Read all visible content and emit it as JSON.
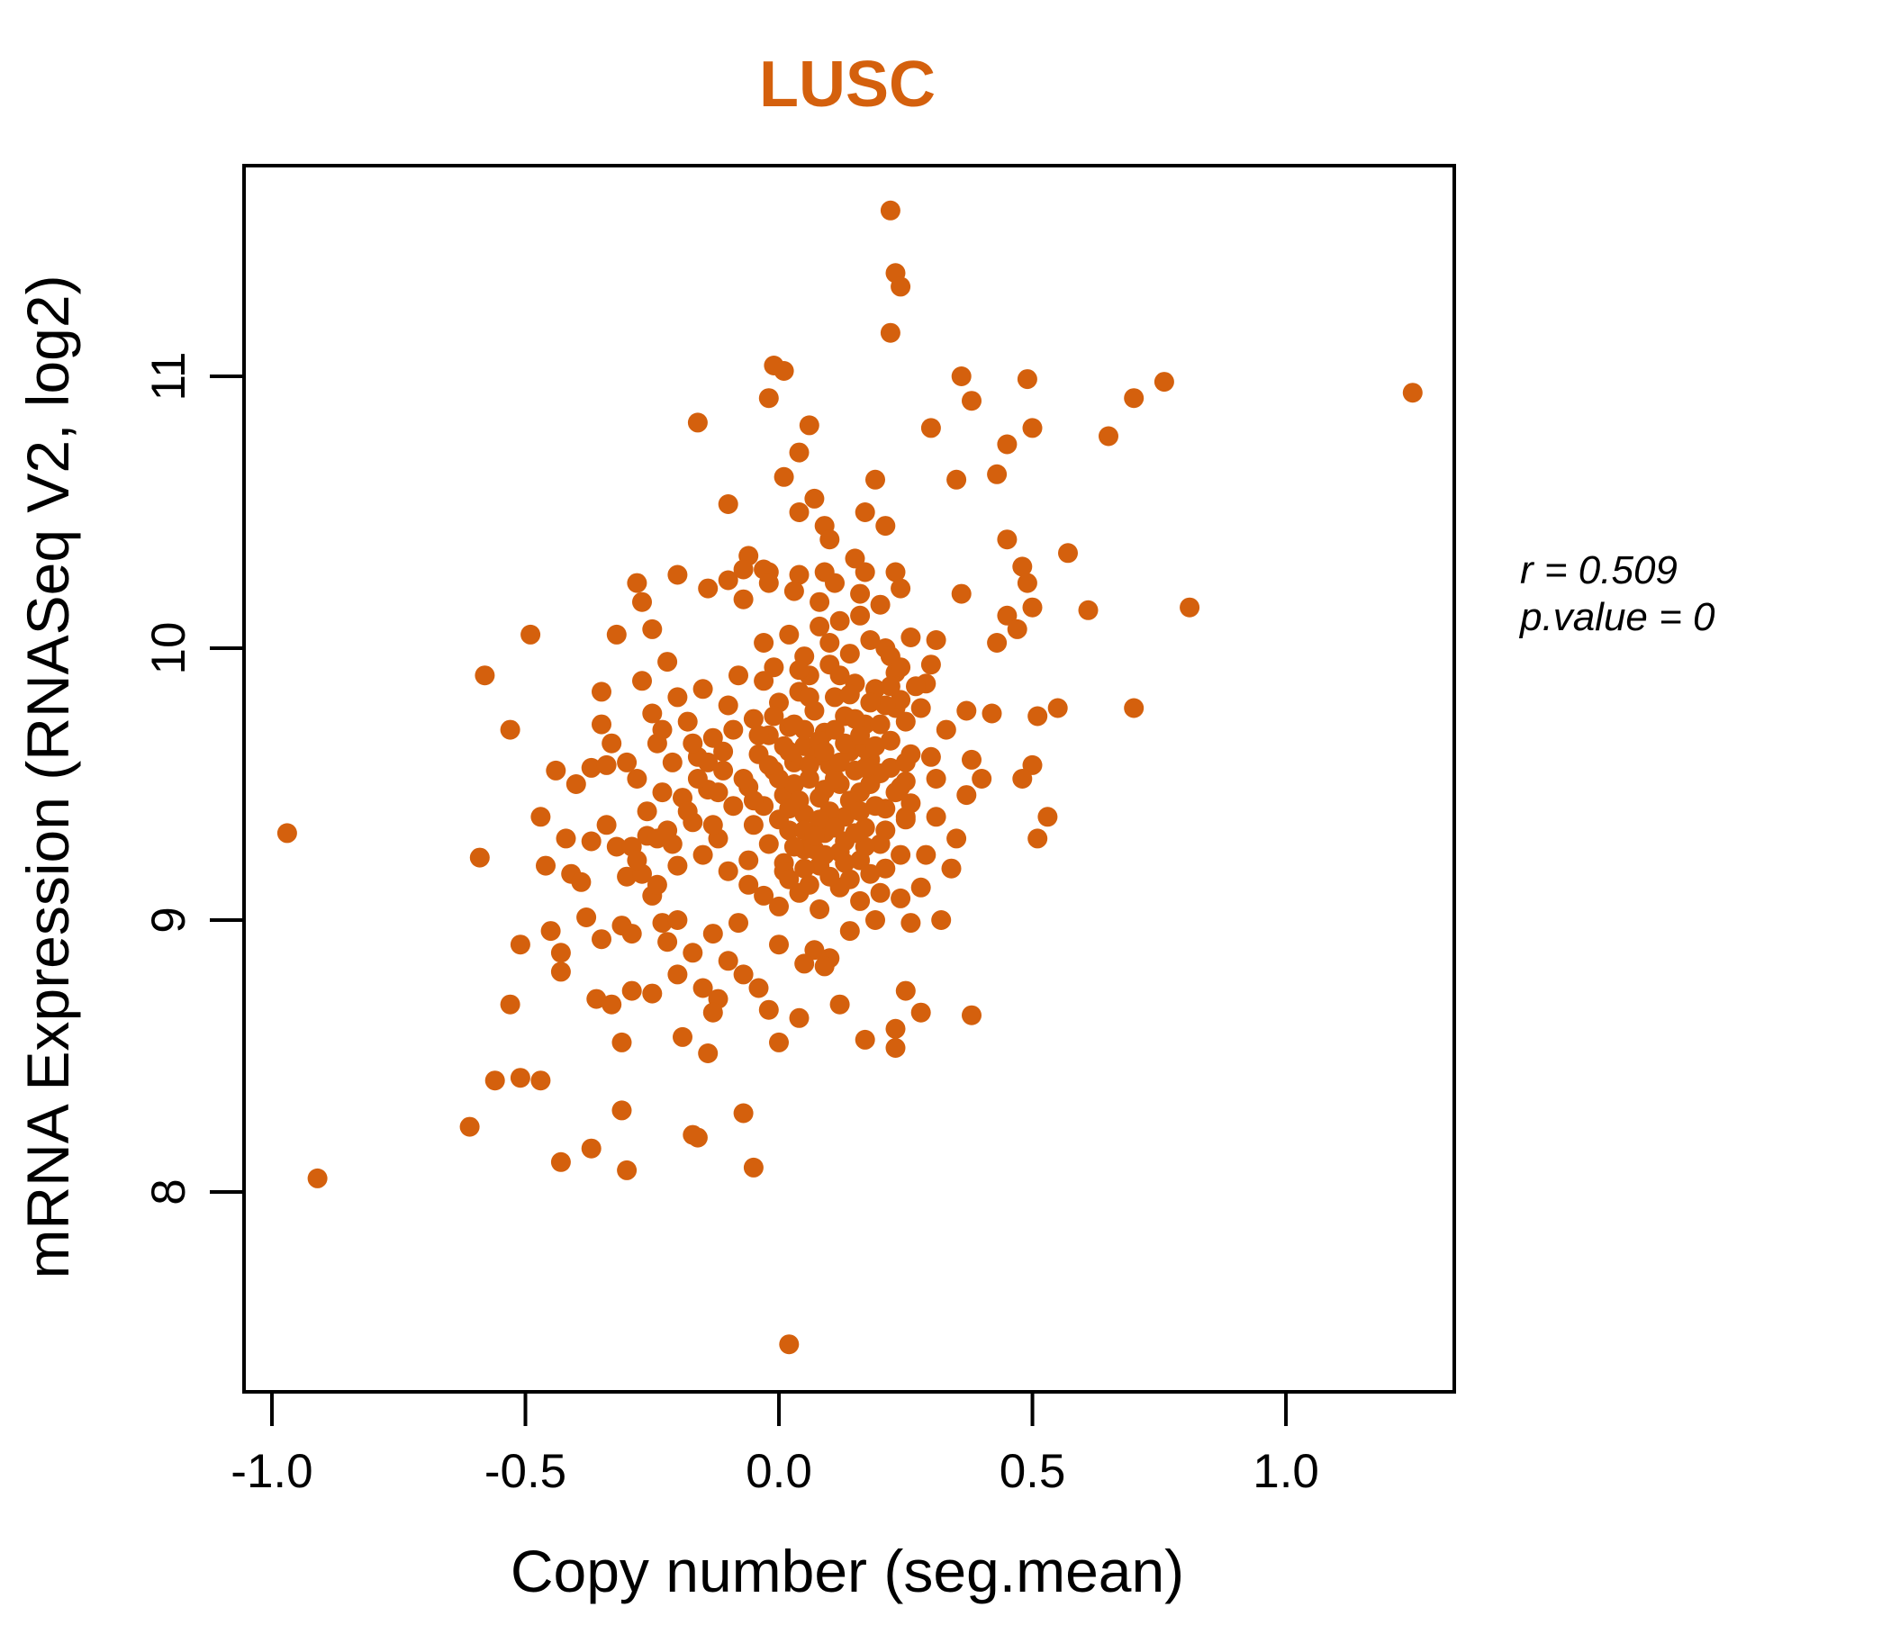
{
  "title": "LUSC",
  "colors": {
    "accent": "#D4600D",
    "axis": "#000000",
    "background": "#FFFFFF"
  },
  "annotation": {
    "r_line": "r = 0.509",
    "p_line": "p.value = 0"
  },
  "chart_data": {
    "type": "scatter",
    "title": "LUSC",
    "xlabel": "Copy number (seg.mean)",
    "ylabel": "mRNA Expression (RNASeq V2, log2)",
    "xlim": [
      -1.055,
      1.332
    ],
    "ylim": [
      7.265,
      11.775
    ],
    "x_ticks": [
      -1.0,
      -0.5,
      0.0,
      0.5,
      1.0
    ],
    "x_tick_labels": [
      "-1.0",
      "-0.5",
      "0.0",
      "0.5",
      "1.0"
    ],
    "y_ticks": [
      8,
      9,
      10,
      11
    ],
    "y_tick_labels": [
      "8",
      "9",
      "10",
      "11"
    ],
    "grid": false,
    "legend": null,
    "annotations": [
      "r = 0.509",
      "p.value = 0"
    ],
    "point_color": "#D4600D",
    "point_radius": 11,
    "points": [
      [
        0.22,
        11.61
      ],
      [
        0.23,
        11.38
      ],
      [
        0.24,
        11.33
      ],
      [
        0.22,
        11.16
      ],
      [
        -0.01,
        11.04
      ],
      [
        0.01,
        11.02
      ],
      [
        -0.02,
        10.92
      ],
      [
        0.36,
        11.0
      ],
      [
        0.49,
        10.99
      ],
      [
        0.38,
        10.91
      ],
      [
        0.7,
        10.92
      ],
      [
        0.76,
        10.98
      ],
      [
        1.25,
        10.94
      ],
      [
        -0.16,
        10.83
      ],
      [
        0.06,
        10.82
      ],
      [
        0.3,
        10.81
      ],
      [
        0.5,
        10.81
      ],
      [
        0.45,
        10.75
      ],
      [
        0.65,
        10.78
      ],
      [
        0.04,
        10.72
      ],
      [
        0.01,
        10.63
      ],
      [
        0.19,
        10.62
      ],
      [
        0.35,
        10.62
      ],
      [
        0.43,
        10.64
      ],
      [
        -0.1,
        10.53
      ],
      [
        0.07,
        10.55
      ],
      [
        0.04,
        10.5
      ],
      [
        0.09,
        10.45
      ],
      [
        0.17,
        10.5
      ],
      [
        0.21,
        10.45
      ],
      [
        0.1,
        10.4
      ],
      [
        0.15,
        10.33
      ],
      [
        -0.06,
        10.34
      ],
      [
        -0.03,
        10.29
      ],
      [
        0.45,
        10.4
      ],
      [
        0.57,
        10.35
      ],
      [
        0.48,
        10.3
      ],
      [
        -0.07,
        10.29
      ],
      [
        -0.02,
        10.28
      ],
      [
        0.04,
        10.27
      ],
      [
        0.09,
        10.28
      ],
      [
        0.17,
        10.28
      ],
      [
        0.23,
        10.28
      ],
      [
        0.81,
        10.15
      ],
      [
        0.61,
        10.14
      ],
      [
        0.36,
        10.2
      ],
      [
        0.49,
        10.24
      ],
      [
        0.45,
        10.12
      ],
      [
        0.47,
        10.07
      ],
      [
        0.5,
        10.15
      ],
      [
        0.43,
        10.02
      ],
      [
        -0.14,
        10.22
      ],
      [
        -0.1,
        10.25
      ],
      [
        -0.07,
        10.18
      ],
      [
        -0.02,
        10.24
      ],
      [
        0.03,
        10.21
      ],
      [
        0.08,
        10.17
      ],
      [
        0.11,
        10.24
      ],
      [
        0.16,
        10.2
      ],
      [
        0.2,
        10.16
      ],
      [
        0.24,
        10.22
      ],
      [
        0.26,
        10.04
      ],
      [
        0.31,
        10.03
      ],
      [
        0.21,
        10.0
      ],
      [
        0.3,
        9.94
      ],
      [
        -0.28,
        10.24
      ],
      [
        -0.2,
        10.27
      ],
      [
        -0.27,
        10.17
      ],
      [
        -0.32,
        10.05
      ],
      [
        -0.49,
        10.05
      ],
      [
        -0.25,
        10.07
      ],
      [
        -0.22,
        9.95
      ],
      [
        -0.58,
        9.9
      ],
      [
        -0.35,
        9.84
      ],
      [
        -0.53,
        9.7
      ],
      [
        -0.35,
        9.72
      ],
      [
        -0.33,
        9.65
      ],
      [
        -0.24,
        9.65
      ],
      [
        -0.37,
        9.56
      ],
      [
        -0.34,
        9.57
      ],
      [
        -0.3,
        9.58
      ],
      [
        -0.4,
        9.5
      ],
      [
        -0.23,
        9.47
      ],
      [
        -0.34,
        9.35
      ],
      [
        -0.37,
        9.29
      ],
      [
        -0.97,
        9.32
      ],
      [
        -0.59,
        9.23
      ],
      [
        -0.32,
        9.27
      ],
      [
        -0.29,
        9.27
      ],
      [
        -0.26,
        9.31
      ],
      [
        -0.24,
        9.3
      ],
      [
        -0.21,
        9.28
      ],
      [
        -0.41,
        9.17
      ],
      [
        -0.39,
        9.14
      ],
      [
        -0.3,
        9.16
      ],
      [
        -0.27,
        9.17
      ],
      [
        -0.25,
        9.09
      ],
      [
        -0.38,
        9.01
      ],
      [
        -0.45,
        8.96
      ],
      [
        -0.51,
        8.91
      ],
      [
        -0.43,
        8.88
      ],
      [
        -0.43,
        8.81
      ],
      [
        -0.35,
        8.93
      ],
      [
        -0.31,
        8.98
      ],
      [
        -0.29,
        8.95
      ],
      [
        -0.23,
        8.99
      ],
      [
        -0.2,
        9.0
      ],
      [
        -0.44,
        9.55
      ],
      [
        -0.47,
        9.38
      ],
      [
        -0.42,
        9.3
      ],
      [
        -0.46,
        9.2
      ],
      [
        -0.53,
        8.69
      ],
      [
        -0.36,
        8.71
      ],
      [
        -0.33,
        8.69
      ],
      [
        -0.29,
        8.74
      ],
      [
        -0.25,
        8.73
      ],
      [
        -0.91,
        8.05
      ],
      [
        -0.61,
        8.24
      ],
      [
        -0.56,
        8.41
      ],
      [
        -0.51,
        8.42
      ],
      [
        -0.47,
        8.41
      ],
      [
        -0.31,
        8.55
      ],
      [
        -0.31,
        8.3
      ],
      [
        -0.43,
        8.11
      ],
      [
        -0.37,
        8.16
      ],
      [
        -0.3,
        8.08
      ],
      [
        -0.19,
        8.57
      ],
      [
        -0.17,
        8.21
      ],
      [
        -0.17,
        8.88
      ],
      [
        -0.2,
        8.8
      ],
      [
        -0.15,
        8.75
      ],
      [
        -0.22,
        8.92
      ],
      [
        -0.1,
        8.85
      ],
      [
        -0.14,
        8.51
      ],
      [
        0.0,
        8.55
      ],
      [
        0.17,
        8.56
      ],
      [
        0.23,
        8.53
      ],
      [
        0.23,
        8.6
      ],
      [
        -0.07,
        8.29
      ],
      [
        -0.16,
        8.2
      ],
      [
        -0.05,
        8.09
      ],
      [
        0.02,
        7.44
      ],
      [
        0.38,
        8.65
      ],
      [
        0.25,
        8.74
      ],
      [
        0.28,
        8.66
      ],
      [
        0.25,
        9.38
      ],
      [
        0.14,
        8.96
      ],
      [
        0.19,
        9.0
      ],
      [
        0.26,
        8.99
      ],
      [
        0.32,
        9.0
      ],
      [
        0.34,
        9.19
      ],
      [
        -0.13,
        8.95
      ],
      [
        -0.08,
        8.99
      ],
      [
        0.0,
        8.91
      ],
      [
        0.07,
        8.89
      ],
      [
        0.1,
        8.86
      ],
      [
        0.05,
        8.84
      ],
      [
        0.09,
        8.83
      ],
      [
        -0.07,
        8.8
      ],
      [
        -0.04,
        8.75
      ],
      [
        -0.12,
        8.71
      ],
      [
        -0.13,
        8.66
      ],
      [
        -0.02,
        8.67
      ],
      [
        0.04,
        8.64
      ],
      [
        0.12,
        8.69
      ],
      [
        0.23,
        9.78
      ],
      [
        0.28,
        9.78
      ],
      [
        0.51,
        9.75
      ],
      [
        0.55,
        9.78
      ],
      [
        0.42,
        9.76
      ],
      [
        0.37,
        9.77
      ],
      [
        0.29,
        9.87
      ],
      [
        0.24,
        9.81
      ],
      [
        0.5,
        9.57
      ],
      [
        0.48,
        9.52
      ],
      [
        0.31,
        9.52
      ],
      [
        0.25,
        9.51
      ],
      [
        0.26,
        9.43
      ],
      [
        0.37,
        9.46
      ],
      [
        0.7,
        9.78
      ],
      [
        0.51,
        9.3
      ],
      [
        0.53,
        9.38
      ],
      [
        -0.06,
        9.22
      ],
      [
        -0.05,
        9.35
      ],
      [
        -0.06,
        9.49
      ],
      [
        -0.04,
        9.61
      ],
      [
        -0.05,
        9.74
      ],
      [
        -0.03,
        9.88
      ],
      [
        -0.02,
        9.28
      ],
      [
        -0.03,
        9.42
      ],
      [
        -0.01,
        9.55
      ],
      [
        -0.02,
        9.68
      ],
      [
        0.0,
        9.8
      ],
      [
        -0.01,
        9.93
      ],
      [
        0.01,
        9.21
      ],
      [
        0.02,
        9.33
      ],
      [
        0.01,
        9.46
      ],
      [
        0.03,
        9.58
      ],
      [
        0.02,
        9.71
      ],
      [
        0.04,
        9.84
      ],
      [
        0.05,
        9.26
      ],
      [
        0.05,
        9.39
      ],
      [
        0.06,
        9.52
      ],
      [
        0.05,
        9.64
      ],
      [
        0.07,
        9.77
      ],
      [
        0.06,
        9.9
      ],
      [
        0.08,
        9.2
      ],
      [
        0.09,
        9.32
      ],
      [
        0.08,
        9.45
      ],
      [
        0.1,
        9.57
      ],
      [
        0.09,
        9.69
      ],
      [
        0.11,
        9.82
      ],
      [
        0.1,
        9.94
      ],
      [
        0.12,
        9.25
      ],
      [
        0.13,
        9.38
      ],
      [
        0.12,
        9.5
      ],
      [
        0.14,
        9.62
      ],
      [
        0.13,
        9.75
      ],
      [
        0.15,
        9.87
      ],
      [
        0.16,
        9.22
      ],
      [
        0.17,
        9.34
      ],
      [
        0.16,
        9.47
      ],
      [
        0.18,
        9.59
      ],
      [
        0.17,
        9.72
      ],
      [
        0.19,
        9.85
      ],
      [
        0.2,
        9.28
      ],
      [
        0.21,
        9.41
      ],
      [
        0.2,
        9.54
      ],
      [
        0.22,
        9.66
      ],
      [
        0.21,
        9.79
      ],
      [
        0.23,
        9.91
      ],
      [
        0.24,
        9.24
      ],
      [
        0.25,
        9.37
      ],
      [
        0.24,
        9.49
      ],
      [
        0.26,
        9.61
      ],
      [
        0.25,
        9.73
      ],
      [
        0.27,
        9.86
      ],
      [
        0.03,
        9.5
      ],
      [
        0.07,
        9.6
      ],
      [
        0.11,
        9.52
      ],
      [
        0.15,
        9.55
      ],
      [
        0.09,
        9.48
      ],
      [
        0.13,
        9.65
      ],
      [
        0.05,
        9.7
      ],
      [
        0.17,
        9.63
      ],
      [
        0.1,
        9.4
      ],
      [
        0.14,
        9.44
      ],
      [
        0.06,
        9.57
      ],
      [
        0.12,
        9.58
      ],
      [
        0.08,
        9.66
      ],
      [
        0.16,
        9.68
      ],
      [
        0.18,
        9.5
      ],
      [
        0.04,
        9.44
      ],
      [
        0.02,
        9.62
      ],
      [
        0.19,
        9.42
      ],
      [
        0.22,
        9.56
      ],
      [
        0.0,
        9.37
      ],
      [
        0.05,
        9.97
      ],
      [
        0.1,
        10.02
      ],
      [
        0.14,
        9.98
      ],
      [
        0.02,
        10.05
      ],
      [
        0.18,
        10.03
      ],
      [
        0.08,
        10.08
      ],
      [
        -0.03,
        10.02
      ],
      [
        0.22,
        9.97
      ],
      [
        0.12,
        10.1
      ],
      [
        0.16,
        10.12
      ],
      [
        0.0,
        9.52
      ],
      [
        0.01,
        9.64
      ],
      [
        0.03,
        9.72
      ],
      [
        0.05,
        9.33
      ],
      [
        0.07,
        9.26
      ],
      [
        0.09,
        9.62
      ],
      [
        0.11,
        9.7
      ],
      [
        0.13,
        9.29
      ],
      [
        0.15,
        9.74
      ],
      [
        0.17,
        9.56
      ],
      [
        0.19,
        9.64
      ],
      [
        0.21,
        9.33
      ],
      [
        0.23,
        9.47
      ],
      [
        0.25,
        9.58
      ],
      [
        0.2,
        9.72
      ],
      [
        0.18,
        9.8
      ],
      [
        0.14,
        9.83
      ],
      [
        0.12,
        9.9
      ],
      [
        0.06,
        9.82
      ],
      [
        0.04,
        9.92
      ],
      [
        0.02,
        9.41
      ],
      [
        0.08,
        9.37
      ],
      [
        0.16,
        9.4
      ],
      [
        0.22,
        9.86
      ],
      [
        0.24,
        9.93
      ],
      [
        -0.01,
        9.75
      ],
      [
        -0.04,
        9.68
      ],
      [
        -0.02,
        9.57
      ],
      [
        -0.05,
        9.44
      ],
      [
        -0.07,
        9.52
      ],
      [
        0.01,
        9.18
      ],
      [
        0.05,
        9.19
      ],
      [
        0.09,
        9.24
      ],
      [
        0.13,
        9.21
      ],
      [
        0.17,
        9.27
      ],
      [
        0.21,
        9.19
      ],
      [
        0.03,
        9.27
      ],
      [
        0.07,
        9.31
      ],
      [
        0.11,
        9.34
      ],
      [
        0.15,
        9.32
      ],
      [
        -0.1,
        9.18
      ],
      [
        -0.12,
        9.3
      ],
      [
        -0.09,
        9.42
      ],
      [
        -0.11,
        9.55
      ],
      [
        -0.13,
        9.67
      ],
      [
        -0.1,
        9.79
      ],
      [
        -0.08,
        9.9
      ],
      [
        -0.15,
        9.24
      ],
      [
        -0.17,
        9.36
      ],
      [
        -0.14,
        9.48
      ],
      [
        -0.16,
        9.6
      ],
      [
        -0.18,
        9.73
      ],
      [
        -0.15,
        9.85
      ],
      [
        -0.2,
        9.2
      ],
      [
        -0.22,
        9.33
      ],
      [
        -0.19,
        9.45
      ],
      [
        -0.21,
        9.58
      ],
      [
        -0.23,
        9.7
      ],
      [
        -0.2,
        9.82
      ],
      [
        -0.26,
        9.4
      ],
      [
        -0.28,
        9.52
      ],
      [
        -0.25,
        9.76
      ],
      [
        -0.27,
        9.88
      ],
      [
        -0.24,
        9.13
      ],
      [
        -0.28,
        9.22
      ],
      [
        -0.12,
        9.47
      ],
      [
        -0.14,
        9.58
      ],
      [
        -0.16,
        9.52
      ],
      [
        -0.18,
        9.4
      ],
      [
        -0.13,
        9.35
      ],
      [
        -0.11,
        9.62
      ],
      [
        -0.09,
        9.7
      ],
      [
        -0.17,
        9.65
      ],
      [
        0.0,
        9.05
      ],
      [
        0.04,
        9.1
      ],
      [
        0.08,
        9.04
      ],
      [
        0.12,
        9.12
      ],
      [
        0.16,
        9.07
      ],
      [
        0.2,
        9.1
      ],
      [
        0.24,
        9.08
      ],
      [
        0.28,
        9.12
      ],
      [
        0.02,
        9.15
      ],
      [
        0.06,
        9.13
      ],
      [
        -0.03,
        9.09
      ],
      [
        -0.06,
        9.13
      ],
      [
        0.1,
        9.16
      ],
      [
        0.14,
        9.15
      ],
      [
        0.18,
        9.17
      ],
      [
        0.3,
        9.6
      ],
      [
        0.33,
        9.7
      ],
      [
        0.38,
        9.59
      ],
      [
        0.31,
        9.38
      ],
      [
        0.4,
        9.52
      ],
      [
        0.29,
        9.24
      ],
      [
        0.35,
        9.3
      ]
    ]
  }
}
